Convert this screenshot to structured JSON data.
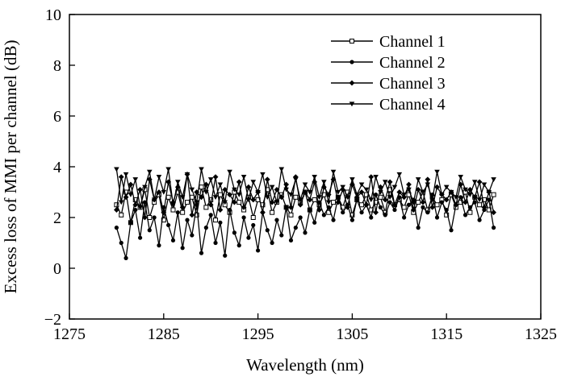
{
  "chart_data": {
    "type": "line",
    "title": "",
    "xlabel": "Wavelength (nm)",
    "ylabel": "Excess loss of MMI per channel (dB)",
    "xlim": [
      1275,
      1325
    ],
    "ylim": [
      -2,
      10
    ],
    "xticks": [
      1275,
      1285,
      1295,
      1305,
      1315,
      1325
    ],
    "yticks": [
      -2,
      0,
      2,
      4,
      6,
      8,
      10
    ],
    "grid": false,
    "legend_position": "top-right",
    "x_start": 1280,
    "x_end": 1320,
    "series": [
      {
        "name": "Channel 1",
        "marker": "square-open",
        "values": [
          2.5,
          2.1,
          3.0,
          1.8,
          2.7,
          2.4,
          3.1,
          2.0,
          2.6,
          2.9,
          1.9,
          2.8,
          2.3,
          3.0,
          2.2,
          2.6,
          2.8,
          2.1,
          3.2,
          2.4,
          2.7,
          1.9,
          2.9,
          2.5,
          2.2,
          3.0,
          2.6,
          2.3,
          2.8,
          2.0,
          2.7,
          2.5,
          3.1,
          2.2,
          2.6,
          2.9,
          2.4,
          2.1,
          2.8,
          2.6,
          3.0,
          2.3,
          2.7,
          2.5,
          2.9,
          2.2,
          2.6,
          2.8,
          2.4,
          3.0,
          2.1,
          2.7,
          2.5,
          2.9,
          2.3,
          2.6,
          2.8,
          2.2,
          3.1,
          2.5,
          2.7,
          2.4,
          2.9,
          2.2,
          2.6,
          3.0,
          2.3,
          2.8,
          2.5,
          2.7,
          2.1,
          2.9,
          2.4,
          2.6,
          3.0,
          2.2,
          2.8,
          2.5,
          2.7,
          2.3,
          2.9
        ]
      },
      {
        "name": "Channel 2",
        "marker": "circle-filled",
        "values": [
          1.6,
          1.0,
          0.4,
          1.8,
          2.3,
          1.2,
          2.6,
          1.5,
          2.0,
          0.9,
          2.4,
          1.7,
          1.1,
          2.2,
          0.8,
          1.9,
          1.3,
          2.5,
          0.6,
          1.6,
          2.1,
          1.0,
          1.8,
          0.5,
          2.3,
          1.4,
          0.9,
          2.0,
          1.2,
          1.7,
          0.7,
          2.2,
          1.5,
          1.0,
          1.9,
          1.3,
          2.4,
          1.1,
          1.6,
          2.0,
          1.4,
          2.3,
          1.8,
          2.6,
          2.1,
          2.4,
          1.9,
          2.8,
          2.2,
          2.5,
          1.9,
          2.7,
          2.2,
          2.5,
          2.0,
          2.9,
          2.4,
          2.1,
          2.6,
          2.3,
          2.8,
          2.0,
          2.5,
          2.7,
          1.6,
          2.4,
          2.2,
          2.9,
          2.0,
          2.6,
          2.3,
          1.5,
          2.5,
          2.8,
          2.1,
          2.4,
          2.6,
          1.9,
          2.3,
          2.7,
          1.6
        ]
      },
      {
        "name": "Channel 3",
        "marker": "diamond-filled",
        "values": [
          2.3,
          3.6,
          2.8,
          3.3,
          2.5,
          3.1,
          2.0,
          3.5,
          2.7,
          3.0,
          2.2,
          3.4,
          2.6,
          3.2,
          2.4,
          3.7,
          2.1,
          3.0,
          2.8,
          3.3,
          2.5,
          3.6,
          2.3,
          3.1,
          2.9,
          2.6,
          3.4,
          2.4,
          3.2,
          2.7,
          3.0,
          2.2,
          3.5,
          2.6,
          3.1,
          2.8,
          3.3,
          2.4,
          3.6,
          2.5,
          3.0,
          2.7,
          3.4,
          2.3,
          3.2,
          2.9,
          3.5,
          2.6,
          3.1,
          2.4,
          3.3,
          2.8,
          3.0,
          2.5,
          3.6,
          2.2,
          3.2,
          2.7,
          3.4,
          2.5,
          3.0,
          2.8,
          3.3,
          2.3,
          3.1,
          2.6,
          3.5,
          2.4,
          3.2,
          2.9,
          2.7,
          3.0,
          2.5,
          3.3,
          2.6,
          3.1,
          2.8,
          3.4,
          2.4,
          3.0,
          2.2
        ]
      },
      {
        "name": "Channel 4",
        "marker": "triangle-down-filled",
        "values": [
          3.9,
          2.6,
          3.7,
          2.9,
          3.5,
          2.4,
          3.2,
          3.8,
          2.7,
          3.6,
          3.0,
          3.9,
          2.5,
          3.4,
          2.8,
          3.7,
          3.1,
          2.6,
          3.9,
          3.0,
          3.5,
          2.8,
          3.3,
          2.6,
          3.8,
          3.1,
          2.9,
          3.6,
          2.7,
          3.4,
          3.0,
          3.7,
          2.8,
          3.2,
          2.6,
          3.9,
          3.1,
          2.9,
          3.5,
          2.7,
          3.3,
          3.0,
          3.6,
          2.8,
          3.4,
          2.6,
          3.8,
          3.0,
          3.2,
          2.8,
          3.5,
          2.9,
          3.3,
          3.1,
          2.7,
          3.6,
          3.0,
          3.4,
          2.8,
          3.2,
          3.7,
          2.9,
          3.1,
          2.6,
          3.5,
          3.0,
          3.3,
          2.7,
          3.8,
          2.9,
          3.2,
          3.0,
          2.8,
          3.6,
          3.1,
          2.9,
          3.4,
          2.7,
          3.3,
          3.0,
          3.5
        ]
      }
    ]
  }
}
